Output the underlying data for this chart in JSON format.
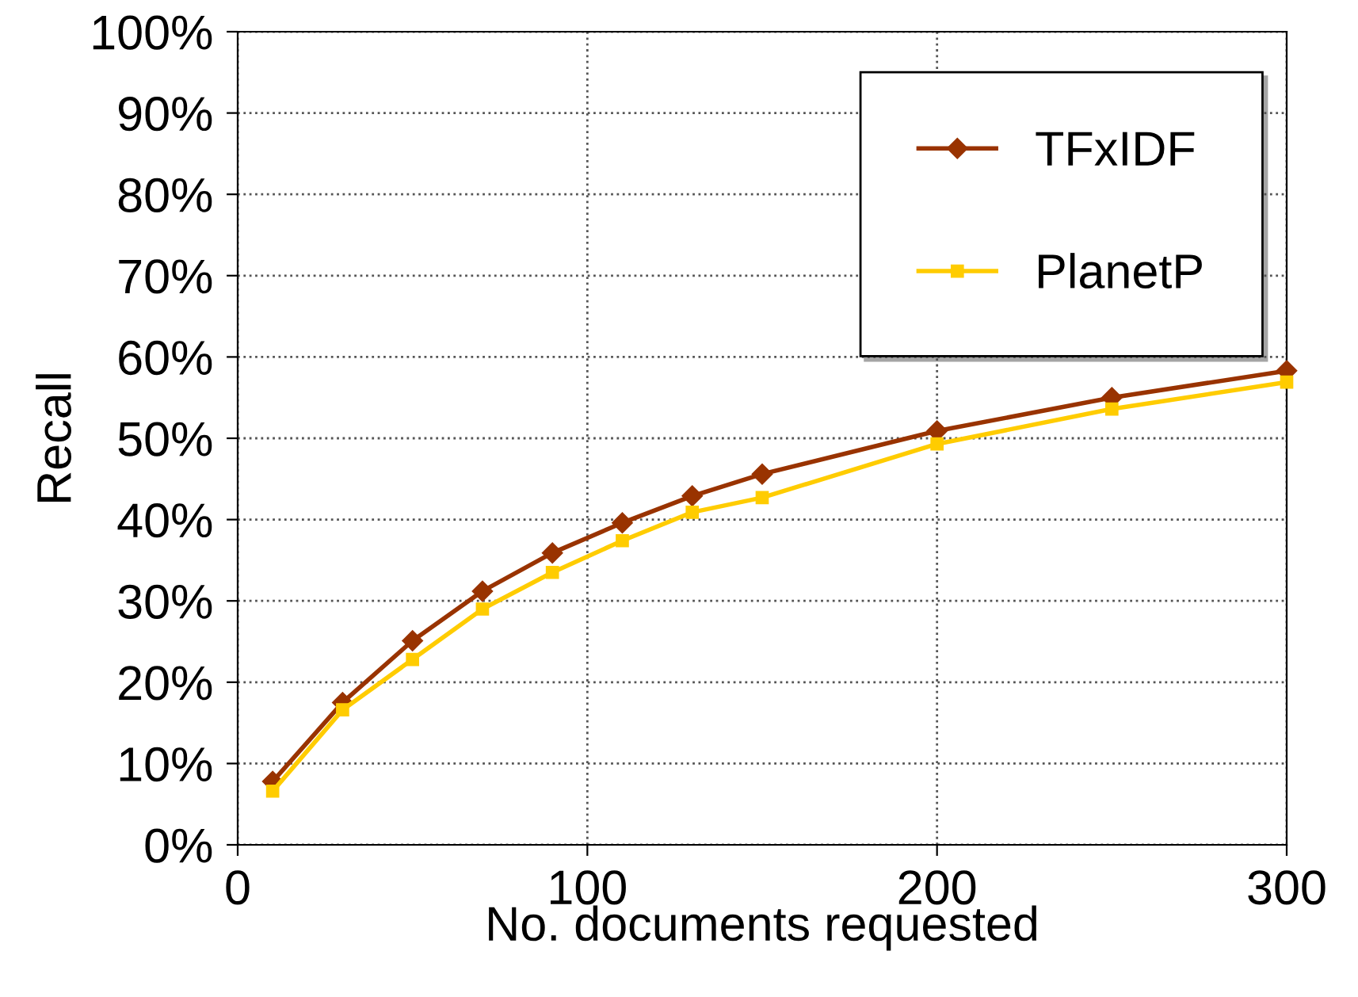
{
  "chart_data": {
    "type": "line",
    "xlabel": "No. documents requested",
    "ylabel": "Recall",
    "xlim": [
      0,
      300
    ],
    "xticks": [
      0,
      100,
      200,
      300
    ],
    "ylim": [
      0,
      100
    ],
    "yticks": [
      {
        "value": 0,
        "label": "0%"
      },
      {
        "value": 10,
        "label": "10%"
      },
      {
        "value": 20,
        "label": "20%"
      },
      {
        "value": 30,
        "label": "30%"
      },
      {
        "value": 40,
        "label": "40%"
      },
      {
        "value": 50,
        "label": "50%"
      },
      {
        "value": 60,
        "label": "60%"
      },
      {
        "value": 70,
        "label": "70%"
      },
      {
        "value": 80,
        "label": "80%"
      },
      {
        "value": 90,
        "label": "90%"
      },
      {
        "value": 100,
        "label": "100%"
      }
    ],
    "grid": true,
    "legend": "top right",
    "line_style": "solid",
    "x": [
      10,
      30,
      50,
      70,
      90,
      110,
      130,
      150,
      200,
      250,
      300
    ],
    "series": [
      {
        "name": "TFxIDF",
        "color": "#993300",
        "marker": "diamond",
        "values": [
          7.8,
          17.5,
          25.1,
          31.2,
          35.9,
          39.6,
          42.9,
          45.6,
          50.9,
          55.0,
          58.3
        ]
      },
      {
        "name": "PlanetP",
        "color": "#ffcc00",
        "marker": "square",
        "values": [
          6.6,
          16.6,
          22.8,
          29.0,
          33.5,
          37.4,
          40.9,
          42.7,
          49.3,
          53.6,
          56.9
        ]
      }
    ]
  }
}
